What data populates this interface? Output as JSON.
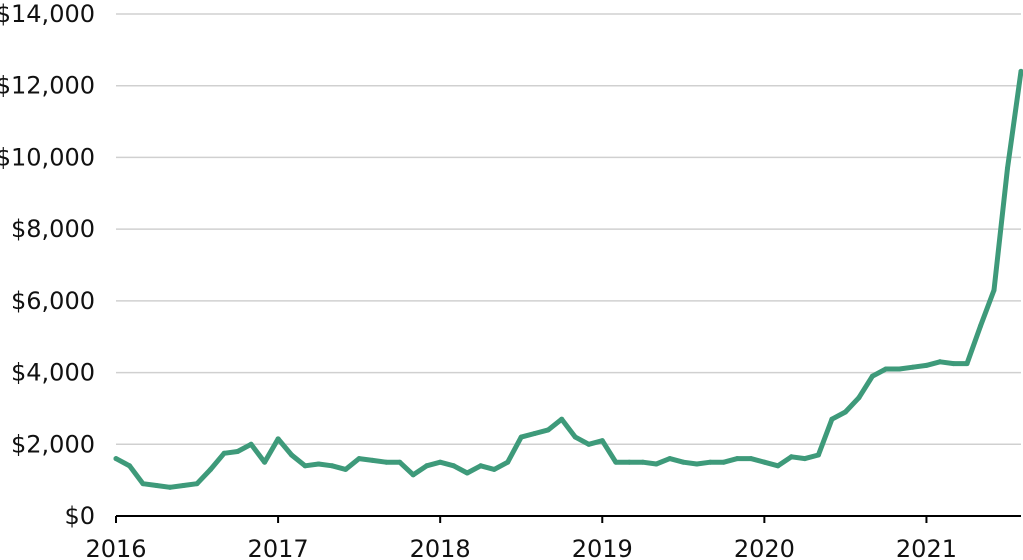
{
  "chart_data": {
    "type": "line",
    "title": "",
    "xlabel": "",
    "ylabel": "",
    "xlim": [
      "2016-01",
      "2021-08"
    ],
    "ylim": [
      0,
      14000
    ],
    "grid": "horizontal",
    "line_color": "#3e9a7a",
    "y_ticks": [
      {
        "value": 0,
        "label": "$0"
      },
      {
        "value": 2000,
        "label": "$2,000"
      },
      {
        "value": 4000,
        "label": "$4,000"
      },
      {
        "value": 6000,
        "label": "$6,000"
      },
      {
        "value": 8000,
        "label": "$8,000"
      },
      {
        "value": 10000,
        "label": "$10,000"
      },
      {
        "value": 12000,
        "label": "$12,000"
      },
      {
        "value": 14000,
        "label": "$14,000"
      }
    ],
    "x_ticks": [
      {
        "value": "2016-01",
        "label": "2016"
      },
      {
        "value": "2017-01",
        "label": "2017"
      },
      {
        "value": "2018-01",
        "label": "2018"
      },
      {
        "value": "2019-01",
        "label": "2019"
      },
      {
        "value": "2020-01",
        "label": "2020"
      },
      {
        "value": "2021-01",
        "label": "2021"
      }
    ],
    "series": [
      {
        "x": [
          "2016-01",
          "2016-02",
          "2016-03",
          "2016-04",
          "2016-05",
          "2016-06",
          "2016-07",
          "2016-08",
          "2016-09",
          "2016-10",
          "2016-11",
          "2016-12",
          "2017-01",
          "2017-02",
          "2017-03",
          "2017-04",
          "2017-05",
          "2017-06",
          "2017-07",
          "2017-08",
          "2017-09",
          "2017-10",
          "2017-11",
          "2017-12",
          "2018-01",
          "2018-02",
          "2018-03",
          "2018-04",
          "2018-05",
          "2018-06",
          "2018-07",
          "2018-08",
          "2018-09",
          "2018-10",
          "2018-11",
          "2018-12",
          "2019-01",
          "2019-02",
          "2019-03",
          "2019-04",
          "2019-05",
          "2019-06",
          "2019-07",
          "2019-08",
          "2019-09",
          "2019-10",
          "2019-11",
          "2019-12",
          "2020-01",
          "2020-02",
          "2020-03",
          "2020-04",
          "2020-05",
          "2020-06",
          "2020-07",
          "2020-08",
          "2020-09",
          "2020-10",
          "2020-11",
          "2020-12",
          "2021-01",
          "2021-02",
          "2021-03",
          "2021-04",
          "2021-05",
          "2021-06",
          "2021-07",
          "2021-08"
        ],
        "y": [
          1600,
          1400,
          900,
          850,
          800,
          850,
          900,
          1300,
          1750,
          1800,
          2000,
          1500,
          2150,
          1700,
          1400,
          1450,
          1400,
          1300,
          1600,
          1550,
          1500,
          1500,
          1150,
          1400,
          1500,
          1400,
          1200,
          1400,
          1300,
          1500,
          2200,
          2300,
          2400,
          2700,
          2200,
          2000,
          2100,
          1500,
          1500,
          1500,
          1450,
          1600,
          1500,
          1450,
          1500,
          1500,
          1600,
          1600,
          1500,
          1400,
          1650,
          1600,
          1700,
          2700,
          2900,
          3300,
          3900,
          4100,
          4100,
          4150,
          4200,
          4300,
          4250,
          4250,
          5300,
          6300,
          9700,
          12400
        ]
      }
    ]
  }
}
